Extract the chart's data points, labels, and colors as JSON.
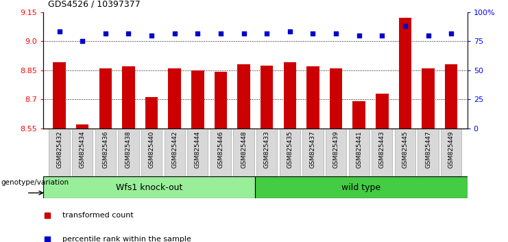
{
  "title": "GDS4526 / 10397377",
  "samples": [
    "GSM825432",
    "GSM825434",
    "GSM825436",
    "GSM825438",
    "GSM825440",
    "GSM825442",
    "GSM825444",
    "GSM825446",
    "GSM825448",
    "GSM825433",
    "GSM825435",
    "GSM825437",
    "GSM825439",
    "GSM825441",
    "GSM825443",
    "GSM825445",
    "GSM825447",
    "GSM825449"
  ],
  "bar_values": [
    8.89,
    8.57,
    8.86,
    8.87,
    8.71,
    8.86,
    8.85,
    8.84,
    8.88,
    8.875,
    8.89,
    8.87,
    8.86,
    8.69,
    8.73,
    9.12,
    8.86,
    8.88
  ],
  "dot_values_left_scale": [
    9.05,
    9.0,
    9.04,
    9.04,
    9.03,
    9.04,
    9.04,
    9.04,
    9.04,
    9.04,
    9.05,
    9.04,
    9.04,
    9.03,
    9.03,
    9.08,
    9.03,
    9.04
  ],
  "bar_color": "#cc0000",
  "dot_color": "#0000cc",
  "group1_label": "Wfs1 knock-out",
  "group2_label": "wild type",
  "group1_color": "#99ee99",
  "group2_color": "#44cc44",
  "group1_count": 9,
  "group2_count": 9,
  "ylim_left": [
    8.55,
    9.15
  ],
  "ylim_right": [
    0,
    100
  ],
  "yticks_left": [
    8.55,
    8.7,
    8.85,
    9.0,
    9.15
  ],
  "yticks_right": [
    0,
    25,
    50,
    75,
    100
  ],
  "ytick_labels_right": [
    "0",
    "25",
    "50",
    "75",
    "100%"
  ],
  "hlines": [
    9.0,
    8.85,
    8.7
  ],
  "legend_bar_label": "transformed count",
  "legend_dot_label": "percentile rank within the sample",
  "genotype_label": "genotype/variation",
  "bar_bottom": 8.55
}
